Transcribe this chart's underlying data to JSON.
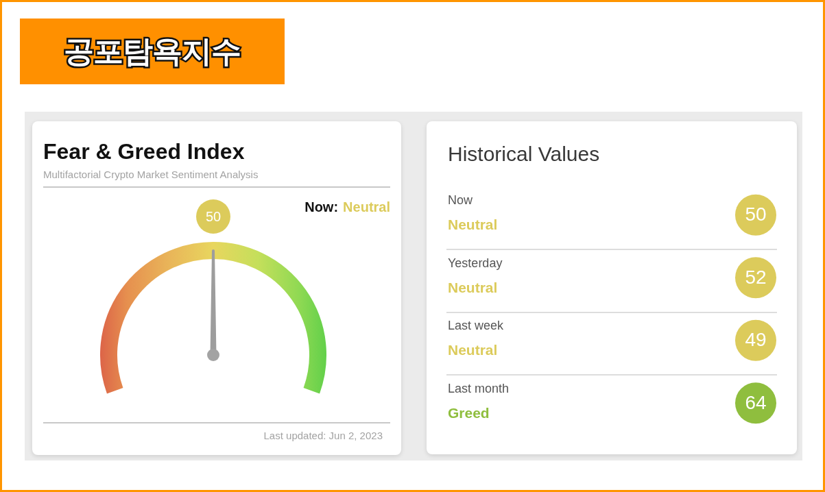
{
  "chart_data": [
    {
      "type": "other",
      "title": "공포탐욕지수"
    },
    {
      "type": "other",
      "title": "Fear & Greed Index",
      "subtitle": "Multifactorial Crypto Market Sentiment Analysis",
      "values": [
        50
      ],
      "colors": [
        "#dccb5b"
      ],
      "data_labels": true,
      "annotations": [
        "Now:",
        "Neutral",
        "Last updated: Jun 2, 2023"
      ]
    },
    {
      "type": "other",
      "title": "Historical Values",
      "values": [
        50,
        52,
        49,
        64
      ],
      "colors": [
        "#dccb5b",
        "#dccb5b",
        "#dccb5b",
        "#8fbe3e"
      ],
      "data_labels": true,
      "annotations": [
        "Now",
        "Neutral",
        "Yesterday",
        "Neutral",
        "Last week",
        "Neutral",
        "Last month",
        "Greed"
      ]
    }
  ]
}
